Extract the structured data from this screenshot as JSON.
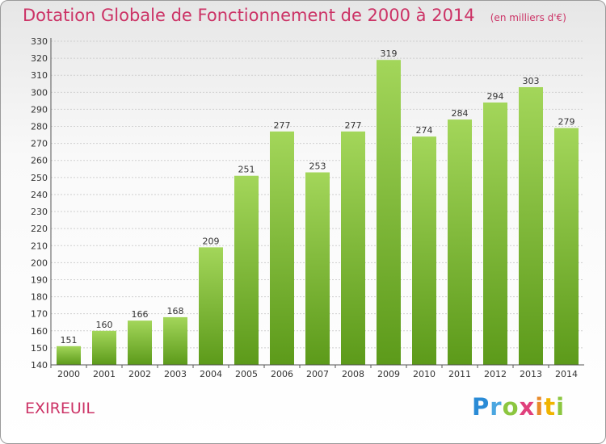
{
  "title": "Dotation Globale de Fonctionnement de 2000 à 2014",
  "unit_note": "(en milliers d'€)",
  "commune": "EXIREUIL",
  "logo_text": "Proxiti",
  "colors": {
    "title": "#cc3366",
    "bar_top": "#a3d65a",
    "bar_bottom": "#5c9a1a"
  },
  "chart_data": {
    "type": "bar",
    "title": "Dotation Globale de Fonctionnement de 2000 à 2014",
    "categories": [
      "2000",
      "2001",
      "2002",
      "2003",
      "2004",
      "2005",
      "2006",
      "2007",
      "2008",
      "2009",
      "2010",
      "2011",
      "2012",
      "2013",
      "2014"
    ],
    "values": [
      151,
      160,
      166,
      168,
      209,
      251,
      277,
      253,
      277,
      319,
      274,
      284,
      294,
      303,
      279
    ],
    "ylim": [
      140,
      330
    ],
    "ytick_step": 10,
    "grid": true,
    "xlabel": "",
    "ylabel": ""
  }
}
